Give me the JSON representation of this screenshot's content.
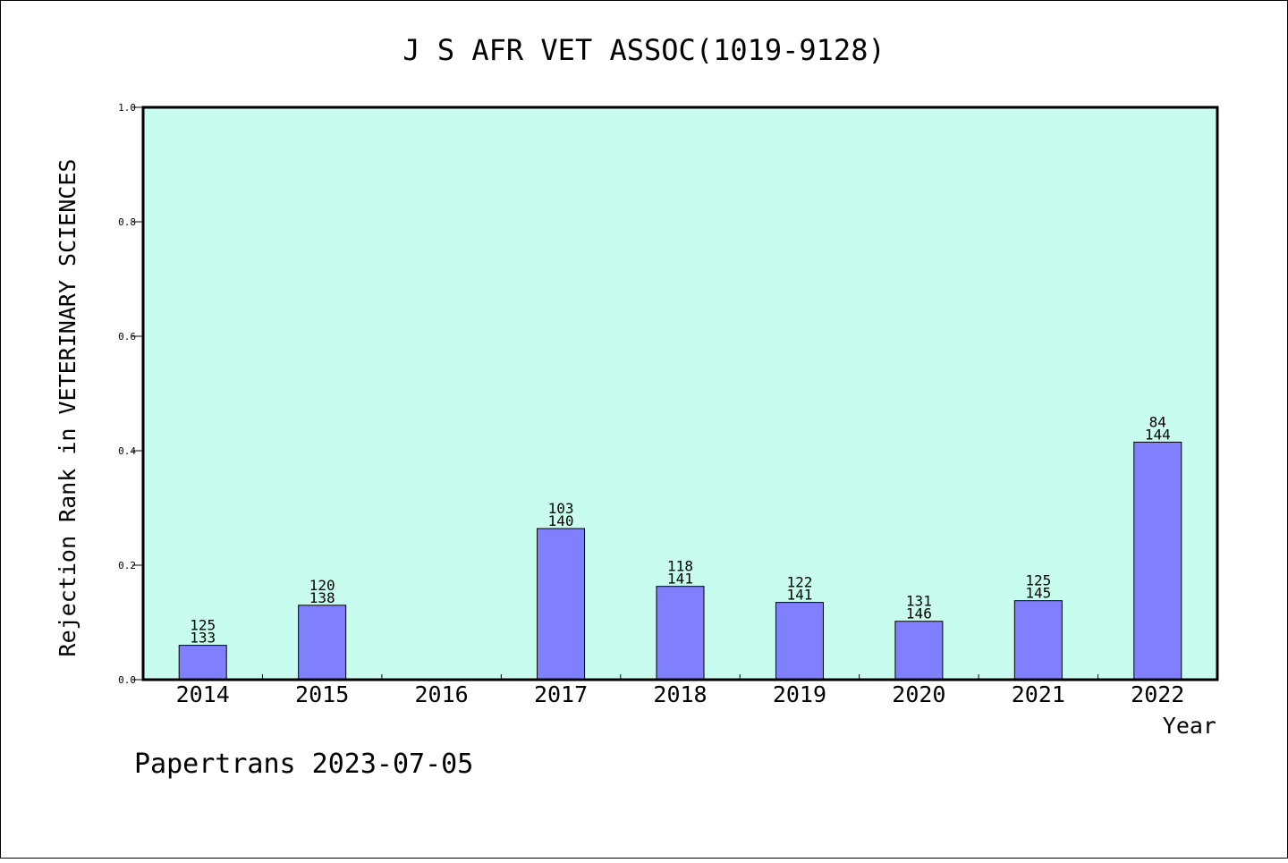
{
  "chart_data": {
    "type": "bar",
    "title": "J S AFR VET ASSOC(1019-9128)",
    "xlabel": "Year",
    "ylabel": "Rejection Rank in VETERINARY SCIENCES",
    "categories": [
      "2014",
      "2015",
      "2016",
      "2017",
      "2018",
      "2019",
      "2020",
      "2021",
      "2022"
    ],
    "values": [
      0.06,
      0.13,
      null,
      0.264,
      0.163,
      0.135,
      0.102,
      0.138,
      0.415
    ],
    "labels_top": [
      "125",
      "120",
      "",
      "103",
      "118",
      "122",
      "131",
      "125",
      "84"
    ],
    "labels_bottom": [
      "133",
      "138",
      "",
      "140",
      "141",
      "141",
      "146",
      "145",
      "144"
    ],
    "ylim": [
      0,
      1.0
    ],
    "yticks": [
      "0.0",
      "0.2",
      "0.4",
      "0.6",
      "0.8",
      "1.0"
    ],
    "grid": false,
    "legend": "none"
  },
  "footer": "Papertrans 2023-07-05",
  "colors": {
    "background": "#ffffff",
    "plot_area": "#c8fcee",
    "bar_fill": "#8080ff",
    "bar_stroke": "#000000"
  }
}
